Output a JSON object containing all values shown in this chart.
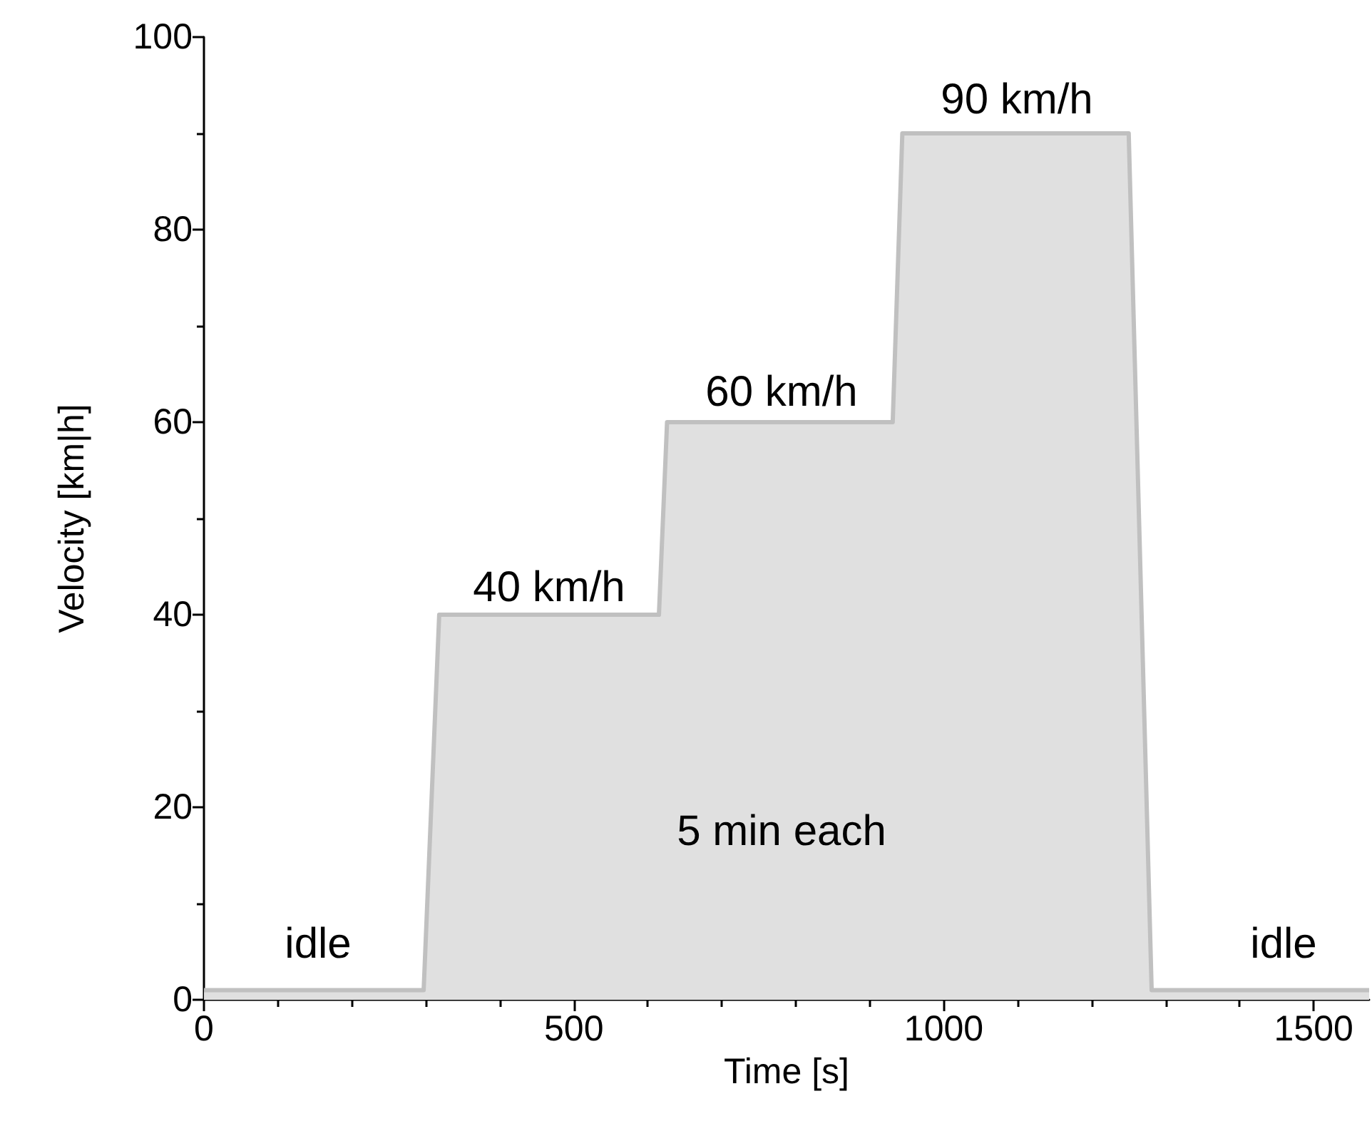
{
  "chart_data": {
    "type": "area",
    "xlabel": "Time [s]",
    "ylabel": "Velocity [km|h]",
    "x": [
      0,
      297,
      318,
      615,
      626,
      931,
      944,
      1250,
      1281,
      1575
    ],
    "series": [
      {
        "color": "#c0c0c0",
        "values": [
          1,
          1,
          40,
          40,
          60,
          60,
          90,
          90,
          1,
          1
        ]
      }
    ],
    "xlim": [
      0,
      1575
    ],
    "xticks": [
      0,
      {
        "value": 100,
        "label": null
      },
      {
        "value": 200,
        "label": null
      },
      {
        "value": 300,
        "label": null
      },
      {
        "value": 400,
        "label": null
      },
      500,
      {
        "value": 600,
        "label": null
      },
      {
        "value": 700,
        "label": null
      },
      {
        "value": 800,
        "label": null
      },
      {
        "value": 900,
        "label": null
      },
      1000,
      {
        "value": 1100,
        "label": null
      },
      {
        "value": 1200,
        "label": null
      },
      {
        "value": 1300,
        "label": null
      },
      {
        "value": 1400,
        "label": null
      },
      1500
    ],
    "ylim": [
      0,
      100
    ],
    "yticks": [
      0,
      {
        "value": 10,
        "label": null
      },
      20,
      {
        "value": 30,
        "label": null
      },
      40,
      {
        "value": 50,
        "label": null
      },
      60,
      {
        "value": 70,
        "label": null
      },
      80,
      {
        "value": 90,
        "label": null
      },
      100
    ],
    "grid": false,
    "marker": "none",
    "line_style": "solid",
    "annotations": [
      "idle",
      "40 km/h",
      "60 km/h",
      "90 km/h",
      "idle",
      "5 min each"
    ]
  }
}
